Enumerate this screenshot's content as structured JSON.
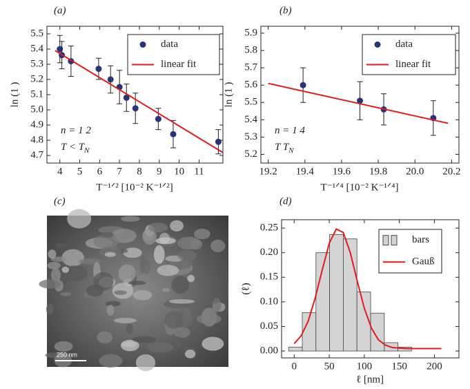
{
  "chart_data": [
    {
      "type": "scatter",
      "label": "(a)",
      "xlabel": "T⁻¹ᐟ² [10⁻² K⁻¹ᐟ²]",
      "ylabel": "ln (1   )",
      "xlim": [
        3.35,
        12.2
      ],
      "ylim": [
        4.65,
        5.55
      ],
      "xticks": [
        4,
        5,
        6,
        7,
        8,
        9,
        10,
        11
      ],
      "yticks": [
        4.7,
        4.8,
        4.9,
        {
          "value": 5,
          "label": "5.0"
        },
        5.1,
        5.2,
        5.3,
        5.4,
        5.5
      ],
      "legend": "upper right",
      "annotations": [
        {
          "text": "n = 1 2"
        },
        {
          "text": "T < T",
          "sub": "N"
        }
      ],
      "series": [
        {
          "name": "data",
          "type": "errorbar",
          "color": "#27337a",
          "x": [
            4.0,
            4.1,
            4.56,
            5.95,
            6.55,
            7.0,
            7.35,
            7.8,
            8.95,
            9.7,
            11.97
          ],
          "values": [
            5.4,
            5.36,
            5.32,
            5.27,
            5.2,
            5.15,
            5.08,
            5.01,
            4.94,
            4.84,
            4.79
          ],
          "errors": [
            0.09,
            0.09,
            0.1,
            0.07,
            0.09,
            0.11,
            0.09,
            0.1,
            0.07,
            0.09,
            0.08
          ]
        },
        {
          "name": "linear fit",
          "type": "line",
          "color": "#e31a1c",
          "x": [
            3.76,
            12.19
          ],
          "values": [
            5.39,
            4.72
          ]
        }
      ]
    },
    {
      "type": "scatter",
      "label": "(b)",
      "xlabel": "T⁻¹ᐟ⁴ [10⁻² K⁻¹ᐟ⁴]",
      "ylabel": "ln (1   )",
      "xlim": [
        19.16,
        20.24
      ],
      "ylim": [
        5.15,
        5.94
      ],
      "xticks": [
        19.2,
        19.4,
        19.6,
        19.8,
        {
          "value": 20,
          "label": "20.0"
        },
        20.2
      ],
      "yticks": [
        5.2,
        5.3,
        5.4,
        5.5,
        5.6,
        5.7,
        5.8,
        5.9
      ],
      "legend": "upper right",
      "annotations": [
        {
          "text": "n = 1 4"
        },
        {
          "text": "T      T",
          "sub": "N"
        }
      ],
      "series": [
        {
          "name": "data",
          "type": "errorbar",
          "color": "#27337a",
          "x": [
            19.39,
            19.7,
            19.83,
            20.1
          ],
          "values": [
            5.6,
            5.51,
            5.46,
            5.41
          ],
          "errors": [
            0.1,
            0.11,
            0.09,
            0.1
          ]
        },
        {
          "name": "linear fit",
          "type": "line",
          "color": "#e31a1c",
          "x": [
            19.2,
            20.18
          ],
          "values": [
            5.61,
            5.38
          ]
        }
      ]
    },
    {
      "type": "histogram",
      "label": "(d)",
      "xlabel": "ℓ [nm]",
      "ylabel": "(ℓ)",
      "xlim": [
        -18,
        235
      ],
      "ylim": [
        -0.014,
        0.267
      ],
      "xticks": [
        0,
        50,
        100,
        150,
        200
      ],
      "yticks": [
        {
          "value": 0,
          "label": "0.00"
        },
        {
          "value": 0.05,
          "label": "0.05"
        },
        {
          "value": 0.1,
          "label": "0.10"
        },
        {
          "value": 0.15,
          "label": "0.15"
        },
        {
          "value": 0.2,
          "label": "0.20"
        },
        {
          "value": 0.25,
          "label": "0.25"
        }
      ],
      "legend": "upper right",
      "series": [
        {
          "name": "bars",
          "type": "histogram",
          "color": "#d4d4d4",
          "bins": [
            -8,
            11.5,
            31,
            50.5,
            70,
            89.5,
            109,
            128.5,
            148,
            167.5
          ],
          "values": [
            0.008,
            0.078,
            0.2,
            0.237,
            0.228,
            0.12,
            0.077,
            0.017,
            0.008
          ]
        },
        {
          "name": "Gauß",
          "type": "line",
          "color": "#e31a1c",
          "x": [
            0,
            10,
            20,
            30,
            40,
            50,
            60,
            70,
            80,
            90,
            100,
            110,
            120,
            130,
            140,
            150,
            160,
            170,
            180,
            190,
            200,
            210
          ],
          "values": [
            0.015,
            0.031,
            0.061,
            0.108,
            0.165,
            0.219,
            0.248,
            0.241,
            0.2,
            0.142,
            0.087,
            0.047,
            0.023,
            0.012,
            0.007,
            0.006,
            0.005,
            0.005,
            0.005,
            0.005,
            0.005,
            0.005
          ]
        }
      ]
    }
  ],
  "image_panel": {
    "label": "(c)",
    "scale_bar": "250 nm"
  }
}
